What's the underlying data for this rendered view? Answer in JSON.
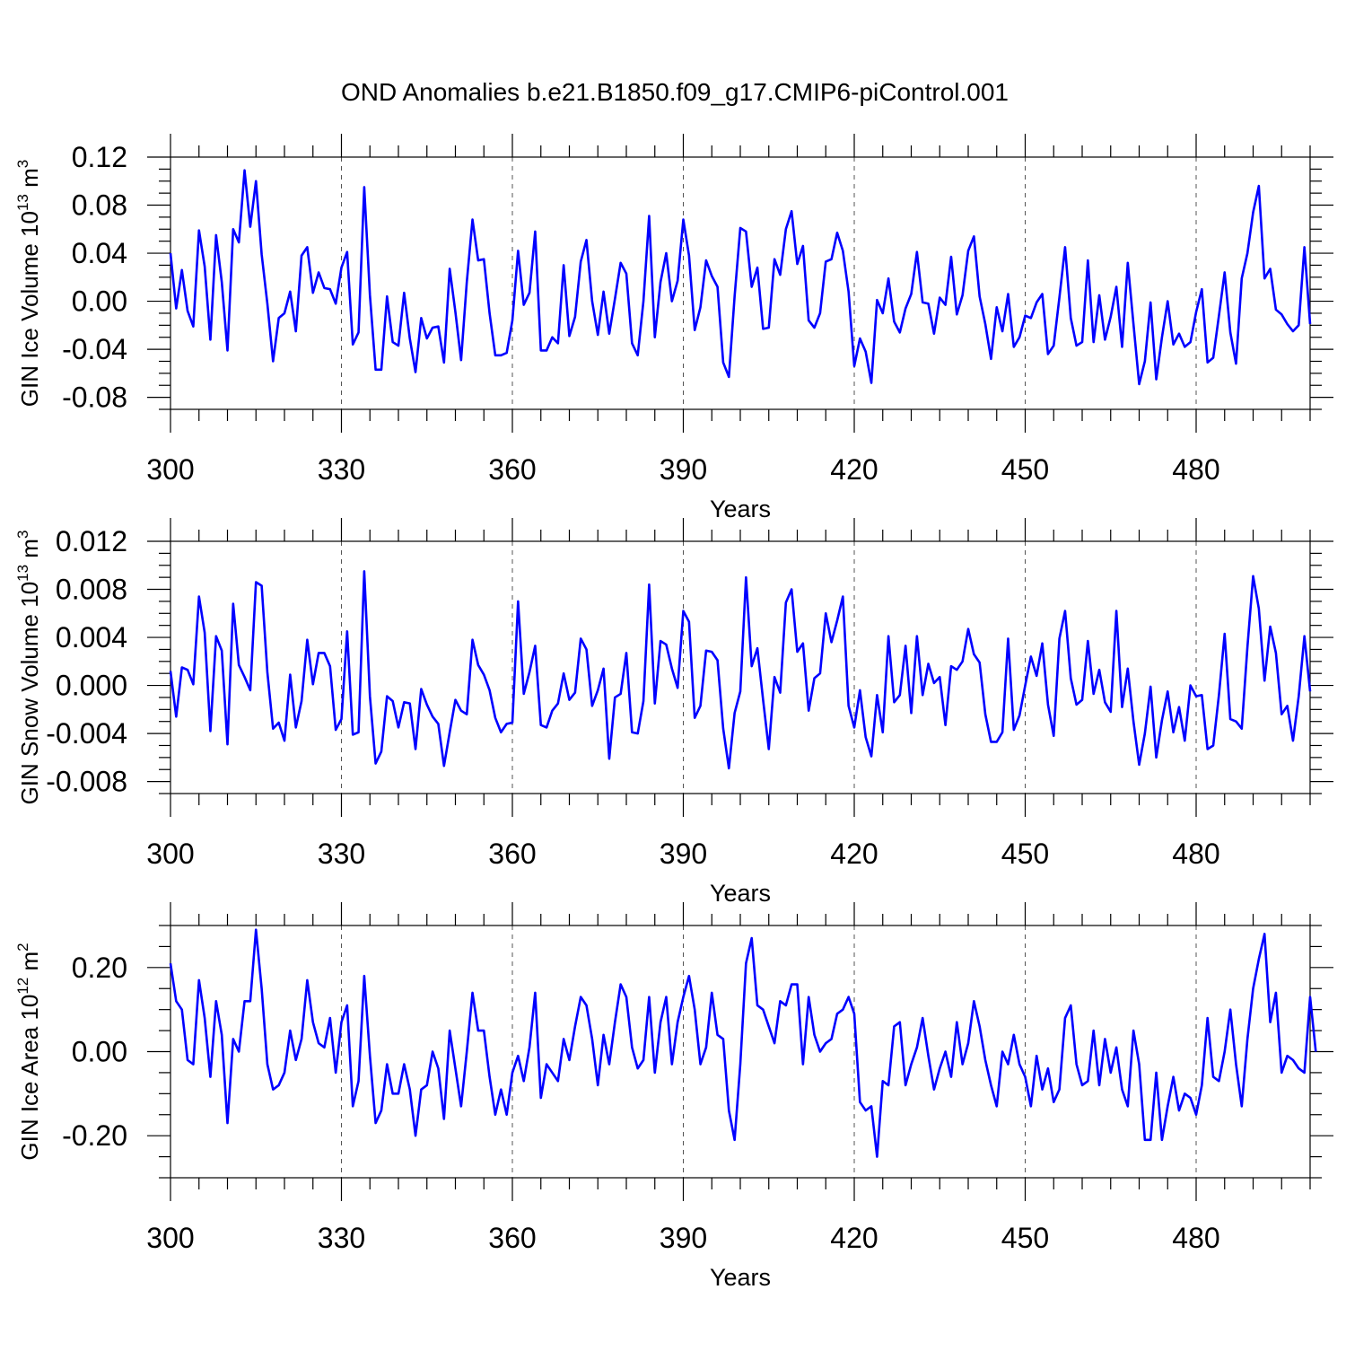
{
  "figure": {
    "title": "OND Anomalies b.e21.B1850.f09_g17.CMIP6-piControl.001",
    "line_color": "#0000ff"
  },
  "chart_data": [
    {
      "type": "line",
      "xlabel": "Years",
      "ylabel": "GIN Ice Volume 10",
      "ylabel_exp": "13",
      "ylabel_unit": " m",
      "ylabel_unit_exp": "3",
      "xlim": [
        300,
        500
      ],
      "ylim": [
        -0.09,
        0.12
      ],
      "xticks": [
        300,
        330,
        360,
        390,
        420,
        450,
        480
      ],
      "xtick_labels": [
        "300",
        "330",
        "360",
        "390",
        "420",
        "450",
        "480"
      ],
      "yticks": [
        -0.08,
        -0.04,
        0.0,
        0.04,
        0.08,
        0.12
      ],
      "ytick_labels": [
        "-0.08",
        "-0.04",
        "0.00",
        "0.04",
        "0.08",
        "0.12"
      ],
      "x_start": 300,
      "series": [
        {
          "values": [
            0.04,
            -0.006,
            0.026,
            -0.008,
            -0.021,
            0.059,
            0.029,
            -0.032,
            0.055,
            0.016,
            -0.041,
            0.06,
            0.049,
            0.109,
            0.062,
            0.1,
            0.039,
            -0.002,
            -0.05,
            -0.014,
            -0.01,
            0.008,
            -0.025,
            0.038,
            0.045,
            0.007,
            0.024,
            0.011,
            0.01,
            -0.002,
            0.028,
            0.041,
            -0.036,
            -0.026,
            0.095,
            0.005,
            -0.057,
            -0.057,
            0.004,
            -0.034,
            -0.037,
            0.007,
            -0.031,
            -0.059,
            -0.014,
            -0.031,
            -0.022,
            -0.021,
            -0.051,
            0.027,
            -0.009,
            -0.049,
            0.016,
            0.068,
            0.034,
            0.035,
            -0.01,
            -0.045,
            -0.045,
            -0.043,
            -0.016,
            0.042,
            -0.003,
            0.007,
            0.058,
            -0.041,
            -0.041,
            -0.03,
            -0.035,
            0.03,
            -0.029,
            -0.013,
            0.033,
            0.051,
            0.0,
            -0.028,
            0.008,
            -0.027,
            0.002,
            0.032,
            0.023,
            -0.035,
            -0.045,
            0.0,
            0.071,
            -0.03,
            0.016,
            0.04,
            0.0,
            0.017,
            0.068,
            0.038,
            -0.024,
            -0.005,
            0.034,
            0.021,
            0.012,
            -0.051,
            -0.063,
            0.004,
            0.061,
            0.058,
            0.012,
            0.028,
            -0.023,
            -0.022,
            0.035,
            0.022,
            0.06,
            0.075,
            0.031,
            0.046,
            -0.016,
            -0.022,
            -0.01,
            0.033,
            0.035,
            0.057,
            0.042,
            0.008,
            -0.054,
            -0.031,
            -0.042,
            -0.068,
            0.001,
            -0.01,
            0.019,
            -0.017,
            -0.026,
            -0.006,
            0.006,
            0.041,
            -0.001,
            -0.002,
            -0.027,
            0.003,
            -0.003,
            0.037,
            -0.011,
            0.005,
            0.042,
            0.054,
            0.004,
            -0.019,
            -0.048,
            -0.005,
            -0.025,
            0.006,
            -0.038,
            -0.03,
            -0.012,
            -0.014,
            -0.001,
            0.006,
            -0.044,
            -0.037,
            0.003,
            0.045,
            -0.014,
            -0.037,
            -0.034,
            0.034,
            -0.034,
            0.005,
            -0.032,
            -0.013,
            0.012,
            -0.038,
            0.032,
            -0.019,
            -0.069,
            -0.05,
            -0.001,
            -0.065,
            -0.03,
            0.0,
            -0.036,
            -0.027,
            -0.038,
            -0.034,
            -0.009,
            0.01,
            -0.051,
            -0.047,
            -0.012,
            0.024,
            -0.026,
            -0.052,
            0.019,
            0.04,
            0.074,
            0.096,
            0.019,
            0.027,
            -0.007,
            -0.011,
            -0.019,
            -0.025,
            -0.02,
            0.045,
            -0.019
          ]
        }
      ]
    },
    {
      "type": "line",
      "xlabel": "Years",
      "ylabel": "GIN Snow Volume 10",
      "ylabel_exp": "13",
      "ylabel_unit": " m",
      "ylabel_unit_exp": "3",
      "xlim": [
        300,
        500
      ],
      "ylim": [
        -0.009,
        0.012
      ],
      "xticks": [
        300,
        330,
        360,
        390,
        420,
        450,
        480
      ],
      "xtick_labels": [
        "300",
        "330",
        "360",
        "390",
        "420",
        "450",
        "480"
      ],
      "yticks": [
        -0.008,
        -0.004,
        0.0,
        0.004,
        0.008,
        0.012
      ],
      "ytick_labels": [
        "-0.008",
        "-0.004",
        "0.000",
        "0.004",
        "0.008",
        "0.012"
      ],
      "x_start": 300,
      "series": [
        {
          "values": [
            0.0012,
            -0.0026,
            0.0015,
            0.0013,
            0.0001,
            0.0074,
            0.0044,
            -0.0038,
            0.0041,
            0.0029,
            -0.0049,
            0.0068,
            0.0017,
            0.0007,
            -0.0004,
            0.0086,
            0.0083,
            0.0011,
            -0.0036,
            -0.0031,
            -0.0046,
            0.0009,
            -0.0035,
            -0.0013,
            0.0038,
            0.0001,
            0.0027,
            0.0027,
            0.0016,
            -0.0037,
            -0.0028,
            0.0045,
            -0.0041,
            -0.0039,
            0.0095,
            -0.0009,
            -0.0065,
            -0.0055,
            -0.0009,
            -0.0013,
            -0.0035,
            -0.0014,
            -0.0015,
            -0.0053,
            -0.0003,
            -0.0016,
            -0.0026,
            -0.0032,
            -0.0067,
            -0.0039,
            -0.0012,
            -0.0021,
            -0.0024,
            0.0038,
            0.0017,
            0.0009,
            -0.0004,
            -0.0027,
            -0.0039,
            -0.0032,
            -0.0031,
            0.007,
            -0.0007,
            0.0011,
            0.0033,
            -0.0033,
            -0.0035,
            -0.0021,
            -0.0015,
            0.001,
            -0.0012,
            -0.0006,
            0.0039,
            0.003,
            -0.0017,
            -0.0004,
            0.0014,
            -0.0061,
            -0.001,
            -0.0007,
            0.0027,
            -0.0039,
            -0.004,
            -0.0013,
            0.0084,
            -0.0015,
            0.0037,
            0.0034,
            0.0014,
            -0.0002,
            0.0062,
            0.0053,
            -0.0027,
            -0.0017,
            0.0029,
            0.0028,
            0.0021,
            -0.0036,
            -0.0069,
            -0.0023,
            -0.0005,
            0.009,
            0.0016,
            0.0031,
            -0.0012,
            -0.0053,
            0.0007,
            -0.0006,
            0.0069,
            0.008,
            0.0028,
            0.0035,
            -0.0021,
            0.0006,
            0.001,
            0.006,
            0.0036,
            0.0054,
            0.0074,
            -0.0017,
            -0.0035,
            -0.0004,
            -0.0043,
            -0.0059,
            -0.0008,
            -0.0039,
            0.0041,
            -0.0014,
            -0.0008,
            0.0033,
            -0.0023,
            0.0041,
            -0.0008,
            0.0018,
            0.0002,
            0.0007,
            -0.0033,
            0.0016,
            0.0013,
            0.002,
            0.0047,
            0.0026,
            0.0019,
            -0.0024,
            -0.0047,
            -0.0047,
            -0.0039,
            0.0039,
            -0.0037,
            -0.0025,
            0.0,
            0.0024,
            0.0008,
            0.0035,
            -0.0016,
            -0.0042,
            0.0039,
            0.0062,
            0.0006,
            -0.0016,
            -0.0012,
            0.0037,
            -0.0007,
            0.0013,
            -0.0014,
            -0.0022,
            0.0062,
            -0.0018,
            0.0014,
            -0.003,
            -0.0066,
            -0.004,
            -0.0001,
            -0.006,
            -0.0029,
            -0.0005,
            -0.0039,
            -0.0018,
            -0.0046,
            0.0,
            -0.0009,
            -0.0008,
            -0.0053,
            -0.005,
            -0.0008,
            0.0043,
            -0.0028,
            -0.003,
            -0.0036,
            0.0032,
            0.0091,
            0.0064,
            0.0004,
            0.0049,
            0.0027,
            -0.0024,
            -0.0017,
            -0.0046,
            -0.0009,
            0.0041,
            -0.0005
          ]
        }
      ]
    },
    {
      "type": "line",
      "xlabel": "Years",
      "ylabel": "GIN Ice Area 10",
      "ylabel_exp": "12",
      "ylabel_unit": " m",
      "ylabel_unit_exp": "2",
      "xlim": [
        300,
        500
      ],
      "ylim": [
        -0.3,
        0.3
      ],
      "xticks": [
        300,
        330,
        360,
        390,
        420,
        450,
        480
      ],
      "xtick_labels": [
        "300",
        "330",
        "360",
        "390",
        "420",
        "450",
        "480"
      ],
      "yticks": [
        -0.2,
        0.0,
        0.2
      ],
      "ytick_labels": [
        "-0.20",
        "0.00",
        "0.20"
      ],
      "x_start": 300,
      "series": [
        {
          "values": [
            0.21,
            0.12,
            0.1,
            -0.02,
            -0.03,
            0.17,
            0.08,
            -0.06,
            0.12,
            0.04,
            -0.17,
            0.03,
            0.0,
            0.12,
            0.12,
            0.29,
            0.15,
            -0.03,
            -0.09,
            -0.08,
            -0.05,
            0.05,
            -0.02,
            0.03,
            0.17,
            0.07,
            0.02,
            0.01,
            0.08,
            -0.05,
            0.07,
            0.11,
            -0.13,
            -0.07,
            0.18,
            -0.01,
            -0.17,
            -0.14,
            -0.03,
            -0.1,
            -0.1,
            -0.03,
            -0.09,
            -0.2,
            -0.09,
            -0.08,
            0.0,
            -0.04,
            -0.16,
            0.05,
            -0.04,
            -0.13,
            0.0,
            0.14,
            0.05,
            0.05,
            -0.06,
            -0.15,
            -0.09,
            -0.15,
            -0.05,
            -0.01,
            -0.07,
            0.01,
            0.14,
            -0.11,
            -0.03,
            -0.05,
            -0.07,
            0.03,
            -0.02,
            0.06,
            0.13,
            0.11,
            0.03,
            -0.08,
            0.04,
            -0.03,
            0.07,
            0.16,
            0.13,
            0.01,
            -0.04,
            -0.02,
            0.13,
            -0.05,
            0.07,
            0.13,
            -0.03,
            0.07,
            0.13,
            0.18,
            0.1,
            -0.03,
            0.01,
            0.14,
            0.04,
            0.03,
            -0.14,
            -0.21,
            -0.03,
            0.21,
            0.27,
            0.11,
            0.1,
            0.06,
            0.02,
            0.12,
            0.11,
            0.16,
            0.16,
            -0.03,
            0.13,
            0.04,
            0.0,
            0.02,
            0.03,
            0.09,
            0.1,
            0.13,
            0.09,
            -0.12,
            -0.14,
            -0.13,
            -0.25,
            -0.07,
            -0.08,
            0.06,
            0.07,
            -0.08,
            -0.03,
            0.01,
            0.08,
            -0.01,
            -0.09,
            -0.04,
            0.0,
            -0.06,
            0.07,
            -0.03,
            0.02,
            0.12,
            0.06,
            -0.02,
            -0.08,
            -0.13,
            0.0,
            -0.03,
            0.04,
            -0.03,
            -0.06,
            -0.13,
            -0.01,
            -0.09,
            -0.04,
            -0.12,
            -0.09,
            0.08,
            0.11,
            -0.03,
            -0.08,
            -0.07,
            0.05,
            -0.08,
            0.03,
            -0.05,
            0.01,
            -0.09,
            -0.13,
            0.05,
            -0.03,
            -0.21,
            -0.21,
            -0.05,
            -0.21,
            -0.13,
            -0.06,
            -0.14,
            -0.1,
            -0.11,
            -0.15,
            -0.08,
            0.08,
            -0.06,
            -0.07,
            0.0,
            0.1,
            -0.03,
            -0.13,
            0.03,
            0.15,
            0.22,
            0.28,
            0.07,
            0.14,
            -0.05,
            -0.01,
            -0.02,
            -0.04,
            -0.05,
            0.13,
            0.0
          ]
        }
      ]
    }
  ]
}
